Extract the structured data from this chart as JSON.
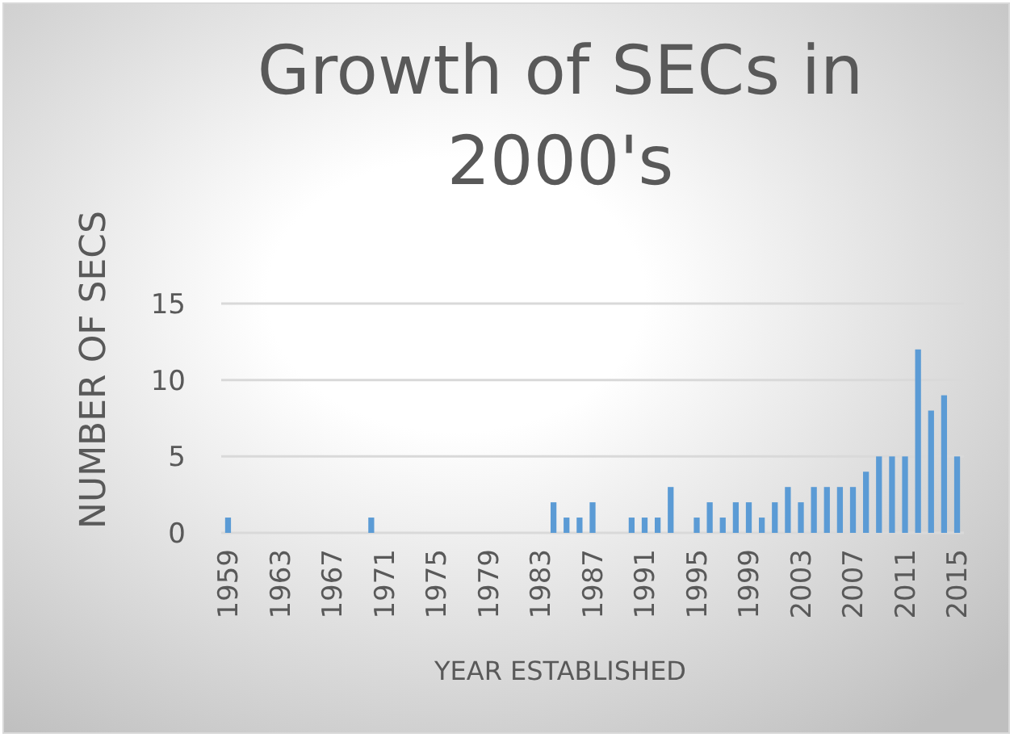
{
  "chart_data": {
    "type": "bar",
    "title": "Growth of SECs in 2000's",
    "xlabel": "YEAR ESTABLISHED",
    "ylabel": "NUMBER OF SECS",
    "categories": [
      "1959",
      null,
      null,
      null,
      "1963",
      null,
      null,
      null,
      "1967",
      null,
      null,
      null,
      "1971",
      null,
      null,
      null,
      "1975",
      null,
      null,
      null,
      "1979",
      null,
      null,
      null,
      "1983",
      null,
      null,
      null,
      "1987",
      null,
      null,
      null,
      "1991",
      null,
      null,
      null,
      "1995",
      null,
      null,
      null,
      "1999",
      null,
      null,
      null,
      "2003",
      null,
      null,
      null,
      "2007",
      null,
      null,
      null,
      "2011",
      null,
      null,
      null,
      "2015"
    ],
    "values": [
      1,
      0,
      0,
      0,
      0,
      0,
      0,
      0,
      0,
      0,
      0,
      1,
      0,
      0,
      0,
      0,
      0,
      0,
      0,
      0,
      0,
      0,
      0,
      0,
      0,
      2,
      1,
      1,
      2,
      0,
      0,
      1,
      1,
      1,
      3,
      0,
      1,
      2,
      1,
      2,
      2,
      1,
      2,
      3,
      2,
      3,
      3,
      3,
      3,
      4,
      5,
      5,
      5,
      12,
      8,
      9,
      5
    ],
    "color": "#5b9bd5",
    "ylim": [
      0,
      15
    ],
    "yticks": [
      0,
      5,
      10,
      15
    ],
    "grid": "y"
  }
}
